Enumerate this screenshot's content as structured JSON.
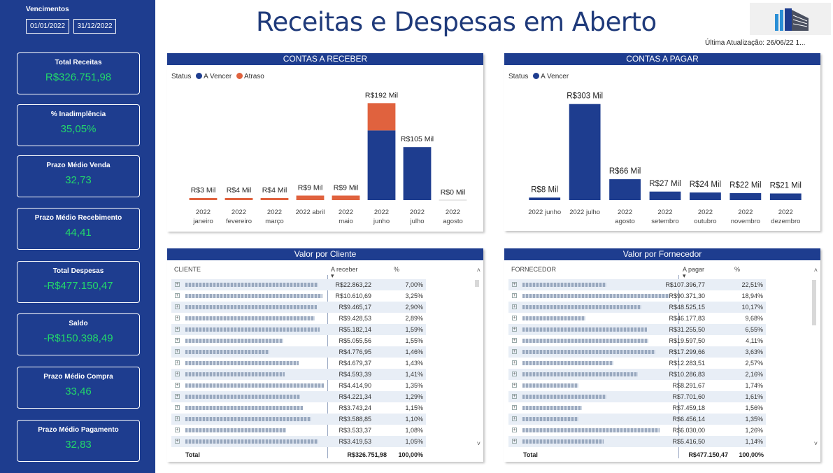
{
  "sidebar": {
    "vencimentos_label": "Vencimentos",
    "date_start": "01/01/2022",
    "date_end": "31/12/2022",
    "kpis": [
      {
        "label": "Total Receitas",
        "value": "R$326.751,98"
      },
      {
        "label": "% Inadimplência",
        "value": "35,05%"
      },
      {
        "label": "Prazo Médio Venda",
        "value": "32,73"
      },
      {
        "label": "Prazo Médio Recebimento",
        "value": "44,41"
      },
      {
        "label": "Total Despesas",
        "value": "-R$477.150,47"
      },
      {
        "label": "Saldo",
        "value": "-R$150.398,49"
      },
      {
        "label": "Prazo Médio Compra",
        "value": "33,46"
      },
      {
        "label": "Prazo Médio Pagamento",
        "value": "32,83"
      }
    ]
  },
  "header": {
    "title": "Receitas e Despesas em Aberto",
    "update": "Última Atualização: 26/06/22  1..."
  },
  "colors": {
    "a_vencer": "#1e3d8f",
    "atraso": "#e0623e",
    "kpi_value": "#22d66b"
  },
  "receber": {
    "title": "CONTAS A RECEBER",
    "legend_title": "Status",
    "legend_a_vencer": "A Vencer",
    "legend_atraso": "Atraso"
  },
  "pagar": {
    "title": "CONTAS A PAGAR",
    "legend_title": "Status",
    "legend_a_vencer": "A Vencer"
  },
  "chart_data": [
    {
      "type": "bar",
      "title": "CONTAS A RECEBER",
      "categories": [
        [
          "2022",
          "janeiro"
        ],
        [
          "2022",
          "fevereiro"
        ],
        [
          "2022",
          "março"
        ],
        [
          "2022 abril"
        ],
        [
          "2022",
          "maio"
        ],
        [
          "2022",
          "junho"
        ],
        [
          "2022",
          "julho"
        ],
        [
          "2022",
          "agosto"
        ]
      ],
      "series": [
        {
          "name": "A Vencer",
          "values": [
            0,
            0,
            0,
            0,
            0,
            138,
            105,
            0
          ]
        },
        {
          "name": "Atraso",
          "values": [
            3,
            4,
            4,
            9,
            9,
            54,
            0,
            0
          ]
        }
      ],
      "data_labels": [
        "R$3 Mil",
        "R$4 Mil",
        "R$4 Mil",
        "R$9 Mil",
        "R$9 Mil",
        "R$192 Mil",
        "R$105 Mil",
        "R$0 Mil"
      ],
      "ylim": [
        0,
        205
      ]
    },
    {
      "type": "bar",
      "title": "CONTAS A PAGAR",
      "categories": [
        [
          "2022 junho"
        ],
        [
          "2022 julho"
        ],
        [
          "2022",
          "agosto"
        ],
        [
          "2022",
          "setembro"
        ],
        [
          "2022",
          "outubro"
        ],
        [
          "2022",
          "novembro"
        ],
        [
          "2022",
          "dezembro"
        ]
      ],
      "series": [
        {
          "name": "A Vencer",
          "values": [
            8,
            303,
            66,
            27,
            24,
            22,
            21
          ]
        }
      ],
      "data_labels": [
        "R$8 Mil",
        "R$303 Mil",
        "R$66 Mil",
        "R$27 Mil",
        "R$24 Mil",
        "R$22 Mil",
        "R$21 Mil"
      ],
      "ylim": [
        0,
        320
      ]
    }
  ],
  "clientes": {
    "title": "Valor por Cliente",
    "col_name": "CLIENTE",
    "col_value": "A receber",
    "col_pct": "%",
    "rows": [
      {
        "value": "R$22.863,22",
        "pct": "7,00%"
      },
      {
        "value": "R$10.610,69",
        "pct": "3,25%"
      },
      {
        "value": "R$9.465,17",
        "pct": "2,90%"
      },
      {
        "value": "R$9.428,53",
        "pct": "2,89%"
      },
      {
        "value": "R$5.182,14",
        "pct": "1,59%"
      },
      {
        "value": "R$5.055,56",
        "pct": "1,55%"
      },
      {
        "value": "R$4.776,95",
        "pct": "1,46%"
      },
      {
        "value": "R$4.679,37",
        "pct": "1,43%"
      },
      {
        "value": "R$4.593,39",
        "pct": "1,41%"
      },
      {
        "value": "R$4.414,90",
        "pct": "1,35%"
      },
      {
        "value": "R$4.221,34",
        "pct": "1,29%"
      },
      {
        "value": "R$3.743,24",
        "pct": "1,15%"
      },
      {
        "value": "R$3.588,85",
        "pct": "1,10%"
      },
      {
        "value": "R$3.533,37",
        "pct": "1,08%"
      },
      {
        "value": "R$3.419,53",
        "pct": "1,05%"
      }
    ],
    "total_label": "Total",
    "total_value": "R$326.751,98",
    "total_pct": "100,00%"
  },
  "fornecedores": {
    "title": "Valor por Fornecedor",
    "col_name": "FORNECEDOR",
    "col_value": "A pagar",
    "col_pct": "%",
    "rows": [
      {
        "value": "R$107.396,77",
        "pct": "22,51%"
      },
      {
        "value": "R$90.371,30",
        "pct": "18,94%"
      },
      {
        "value": "R$48.525,15",
        "pct": "10,17%"
      },
      {
        "value": "R$46.177,83",
        "pct": "9,68%"
      },
      {
        "value": "R$31.255,50",
        "pct": "6,55%"
      },
      {
        "value": "R$19.597,50",
        "pct": "4,11%"
      },
      {
        "value": "R$17.299,66",
        "pct": "3,63%"
      },
      {
        "value": "R$12.283,51",
        "pct": "2,57%"
      },
      {
        "value": "R$10.286,83",
        "pct": "2,16%"
      },
      {
        "value": "R$8.291,67",
        "pct": "1,74%"
      },
      {
        "value": "R$7.701,60",
        "pct": "1,61%"
      },
      {
        "value": "R$7.459,18",
        "pct": "1,56%"
      },
      {
        "value": "R$6.456,14",
        "pct": "1,35%"
      },
      {
        "value": "R$6.030,00",
        "pct": "1,26%"
      },
      {
        "value": "R$5.416,50",
        "pct": "1,14%"
      }
    ],
    "total_label": "Total",
    "total_value": "R$477.150,47",
    "total_pct": "100,00%"
  }
}
